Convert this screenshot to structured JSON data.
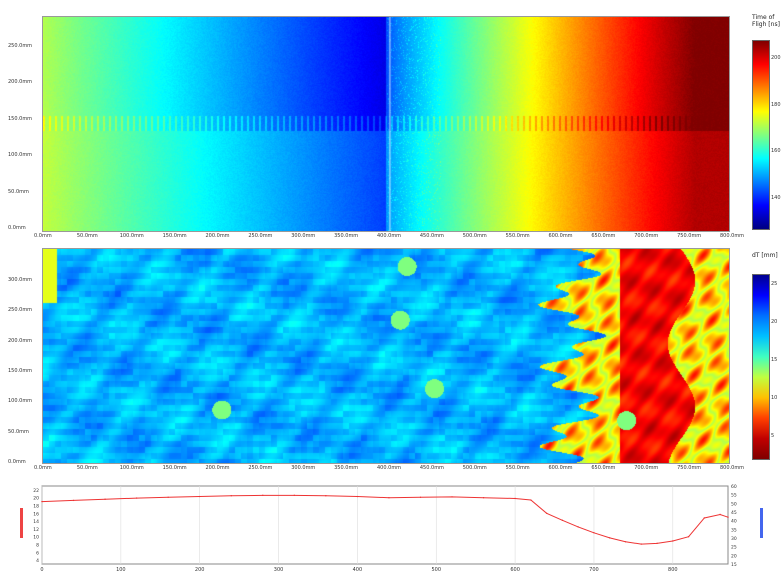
{
  "chart_data": [
    {
      "type": "heatmap",
      "panel": "top",
      "colormap": "jet",
      "colorbar_label": "Time of Fligh [ns]",
      "colorbar_ticks": [
        "200",
        "180",
        "160",
        "140"
      ],
      "x_ticks": [
        "0.0mm",
        "50.0mm",
        "100.0mm",
        "150.0mm",
        "200.0mm",
        "250.0mm",
        "300.0mm",
        "350.0mm",
        "400.0mm",
        "450.0mm",
        "500.0mm",
        "550.0mm",
        "600.0mm",
        "650.0mm",
        "700.0mm",
        "750.0mm",
        "800.0mm"
      ],
      "y_ticks": [
        "250.0mm",
        "200.0mm",
        "150.0mm",
        "100.0mm",
        "50.0mm",
        "0.0mm"
      ]
    },
    {
      "type": "heatmap",
      "panel": "middle",
      "colormap": "jet",
      "colorbar_label": "dT [mm]",
      "colorbar_ticks": [
        "25",
        "20",
        "15",
        "10",
        "5"
      ],
      "x_ticks": [
        "0.0mm",
        "50.0mm",
        "100.0mm",
        "150.0mm",
        "200.0mm",
        "250.0mm",
        "300.0mm",
        "350.0mm",
        "400.0mm",
        "450.0mm",
        "500.0mm",
        "550.0mm",
        "600.0mm",
        "650.0mm",
        "700.0mm",
        "750.0mm",
        "800.0mm"
      ],
      "y_ticks": [
        "300.0mm",
        "250.0mm",
        "200.0mm",
        "150.0mm",
        "100.0mm",
        "50.0mm",
        "0.0mm"
      ]
    },
    {
      "type": "line",
      "panel": "bottom",
      "x_ticks": [
        "0",
        "100",
        "200",
        "300",
        "400",
        "500",
        "600",
        "700",
        "800"
      ],
      "y_left_ticks": [
        "22",
        "20",
        "18",
        "16",
        "14",
        "12",
        "10",
        "8",
        "6",
        "4"
      ],
      "y_right_ticks": [
        "60",
        "55",
        "50",
        "45",
        "40",
        "35",
        "30",
        "25",
        "20",
        "15"
      ],
      "xlim": [
        0,
        870
      ],
      "ylim_left": [
        3,
        23
      ],
      "series": [
        {
          "color": "#ee3333",
          "x": [
            0,
            40,
            80,
            120,
            160,
            200,
            240,
            280,
            320,
            360,
            400,
            440,
            480,
            520,
            560,
            600,
            620,
            640,
            660,
            680,
            700,
            720,
            740,
            760,
            780,
            800,
            820,
            840,
            860,
            870
          ],
          "y": [
            19.0,
            19.3,
            19.6,
            19.9,
            20.1,
            20.3,
            20.5,
            20.6,
            20.6,
            20.5,
            20.3,
            20.0,
            20.1,
            20.2,
            20.0,
            19.8,
            19.4,
            16.0,
            14.2,
            12.5,
            11.0,
            9.7,
            8.7,
            8.1,
            8.3,
            8.9,
            10.0,
            14.8,
            15.7,
            15.0
          ]
        }
      ]
    }
  ]
}
